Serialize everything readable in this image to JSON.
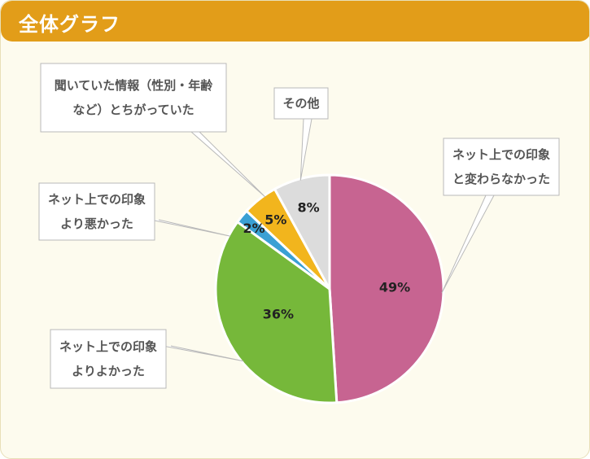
{
  "header": {
    "title": "全体グラフ"
  },
  "colors": {
    "header_bg": "#e29d19",
    "panel_bg": "#fdfbee",
    "same": "#c76491",
    "better": "#76b83a",
    "worse": "#3aa0d4",
    "different": "#f2b51d",
    "other": "#dcdcdc"
  },
  "chart_data": {
    "type": "pie",
    "slices": [
      {
        "label": "ネット上での印象と変わらなかった",
        "value": 49,
        "value_label": "49%",
        "color": "#c76491",
        "lines": [
          "ネット上での印象",
          "と変わらなかった"
        ]
      },
      {
        "label": "ネット上での印象よりよかった",
        "value": 36,
        "value_label": "36%",
        "color": "#76b83a",
        "lines": [
          "ネット上での印象",
          "よりよかった"
        ]
      },
      {
        "label": "ネット上での印象より悪かった",
        "value": 2,
        "value_label": "2%",
        "color": "#3aa0d4",
        "lines": [
          "ネット上での印象",
          "より悪かった"
        ]
      },
      {
        "label": "聞いていた情報（性別・年齢など）とちがっていた",
        "value": 5,
        "value_label": "5%",
        "color": "#f2b51d",
        "lines": [
          "聞いていた情報（性別・年齢",
          "など）とちがっていた"
        ]
      },
      {
        "label": "その他",
        "value": 8,
        "value_label": "8%",
        "color": "#dcdcdc",
        "lines": [
          "その他"
        ]
      }
    ],
    "start": "12 o'clock",
    "direction": "clockwise"
  }
}
